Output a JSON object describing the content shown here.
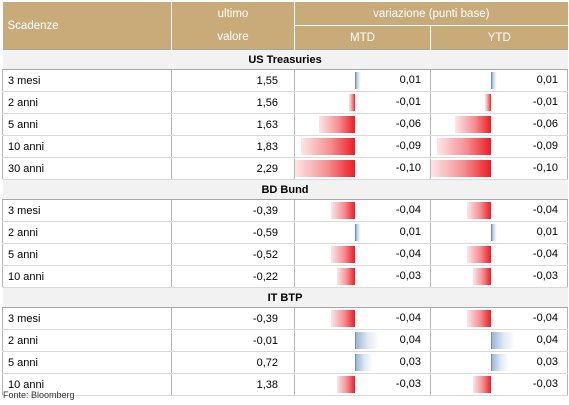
{
  "header": {
    "scadenze": "Scadenze",
    "ultimo_line1": "ultimo",
    "ultimo_line2": "valore",
    "variazione": "variazione (punti base)",
    "mtd": "MTD",
    "ytd": "YTD"
  },
  "sections": [
    {
      "title": "US Treasuries",
      "rows": [
        {
          "label": "3 mesi",
          "value": "1,55",
          "mtd": "0,01",
          "ytd": "0,01"
        },
        {
          "label": "2 anni",
          "value": "1,56",
          "mtd": "-0,01",
          "ytd": "-0,01"
        },
        {
          "label": "5 anni",
          "value": "1,63",
          "mtd": "-0,06",
          "ytd": "-0,06"
        },
        {
          "label": "10 anni",
          "value": "1,83",
          "mtd": "-0,09",
          "ytd": "-0,09"
        },
        {
          "label": "30 anni",
          "value": "2,29",
          "mtd": "-0,10",
          "ytd": "-0,10"
        }
      ]
    },
    {
      "title": "BD Bund",
      "rows": [
        {
          "label": "3 mesi",
          "value": "-0,39",
          "mtd": "-0,04",
          "ytd": "-0,04"
        },
        {
          "label": "2 anni",
          "value": "-0,59",
          "mtd": "0,01",
          "ytd": "0,01"
        },
        {
          "label": "5 anni",
          "value": "-0,52",
          "mtd": "-0,04",
          "ytd": "-0,04"
        },
        {
          "label": "10 anni",
          "value": "-0,22",
          "mtd": "-0,03",
          "ytd": "-0,03"
        }
      ]
    },
    {
      "title": "IT BTP",
      "rows": [
        {
          "label": "3 mesi",
          "value": "-0,39",
          "mtd": "-0,04",
          "ytd": "-0,04"
        },
        {
          "label": "2 anni",
          "value": "-0,01",
          "mtd": "0,04",
          "ytd": "0,04"
        },
        {
          "label": "5 anni",
          "value": "0,72",
          "mtd": "0,03",
          "ytd": "0,03"
        },
        {
          "label": "10 anni",
          "value": "1,38",
          "mtd": "-0,03",
          "ytd": "-0,03"
        }
      ]
    }
  ],
  "source": "Fonte: Bloomberg",
  "colors": {
    "header_bg": "#c9ab79",
    "negative_bar": "#ed1c24",
    "positive_bar": "#6f8fbf"
  }
}
